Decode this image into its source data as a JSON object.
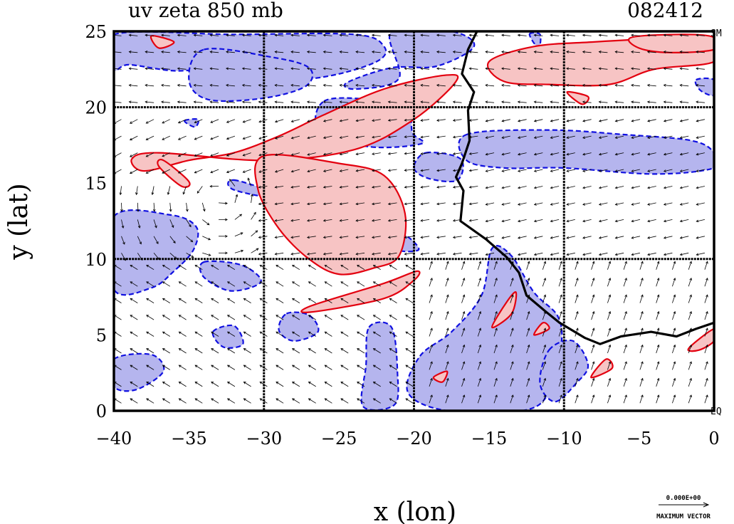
{
  "chart_data": {
    "type": "contour",
    "title": "uv zeta 850 mb",
    "date_label": "082412",
    "xlabel": "x (lon)",
    "ylabel": "y (lat)",
    "xlim": [
      -40,
      0
    ],
    "ylim": [
      0,
      25
    ],
    "x_ticks": [
      -40,
      -35,
      -30,
      -25,
      -20,
      -15,
      -10,
      -5,
      0
    ],
    "y_ticks": [
      0,
      5,
      10,
      15,
      20,
      25
    ],
    "x_tick_labels": [
      "−40",
      "−35",
      "−30",
      "−25",
      "−20",
      "−15",
      "−10",
      "−5",
      "0"
    ],
    "y_tick_labels": [
      "0",
      "5",
      "10",
      "15",
      "20",
      "25"
    ],
    "grid_x": [
      -30,
      -20,
      -10
    ],
    "grid_y": [
      10,
      20
    ],
    "corner_labels": {
      "top_right": "SM",
      "bottom_right": "EQ"
    },
    "vector_legend": {
      "value": "0.000E+00",
      "label": "MAXIMUM VECTOR"
    },
    "colors": {
      "positive_fill": "#f7c4c4",
      "negative_fill": "#b5b5ee",
      "positive_line": "#e3000f",
      "negative_line": "#1010e0",
      "coast": "#000000",
      "vector": "#000000",
      "grid": "#000000"
    },
    "coastline": [
      [
        -15.8,
        25
      ],
      [
        -16.4,
        23.8
      ],
      [
        -16.8,
        22.2
      ],
      [
        -16.0,
        21.0
      ],
      [
        -16.4,
        19.8
      ],
      [
        -16.3,
        17.8
      ],
      [
        -16.8,
        16.3
      ],
      [
        -17.2,
        15.4
      ],
      [
        -16.7,
        14.5
      ],
      [
        -16.9,
        12.5
      ],
      [
        -15.2,
        11.3
      ],
      [
        -13.8,
        10.1
      ],
      [
        -13.0,
        9.1
      ],
      [
        -12.5,
        7.6
      ],
      [
        -11.3,
        6.6
      ],
      [
        -10.3,
        5.8
      ],
      [
        -8.6,
        4.8
      ],
      [
        -7.6,
        4.4
      ],
      [
        -6.2,
        4.9
      ],
      [
        -4.2,
        5.2
      ],
      [
        -2.5,
        4.9
      ],
      [
        -1.2,
        5.4
      ],
      [
        0,
        5.8
      ]
    ],
    "positive_regions": [
      {
        "points": [
          [
            -37,
            17
          ],
          [
            -30,
            16.5
          ],
          [
            -24,
            17.2
          ],
          [
            -20,
            19.2
          ],
          [
            -17.2,
            21.7
          ],
          [
            -18,
            22.1
          ],
          [
            -22,
            21.2
          ],
          [
            -26,
            19.5
          ],
          [
            -29,
            18.1
          ],
          [
            -32,
            17
          ],
          [
            -35,
            16.5
          ],
          [
            -38,
            15.8
          ],
          [
            -38.8,
            16.6
          ]
        ]
      },
      {
        "points": [
          [
            -30,
            16.8
          ],
          [
            -25,
            16.3
          ],
          [
            -22,
            15.5
          ],
          [
            -20.6,
            13
          ],
          [
            -21,
            10.2
          ],
          [
            -22.7,
            9.4
          ],
          [
            -25,
            9
          ],
          [
            -27,
            10
          ],
          [
            -29,
            12
          ],
          [
            -30.4,
            14.6
          ]
        ]
      },
      {
        "points": [
          [
            -26.9,
            6.5
          ],
          [
            -22,
            7.4
          ],
          [
            -20,
            8.6
          ],
          [
            -19.8,
            9.2
          ],
          [
            -22,
            8.4
          ],
          [
            -26.9,
            6.9
          ]
        ]
      },
      {
        "points": [
          [
            -35.5,
            14.8
          ],
          [
            -35,
            15.1
          ],
          [
            -36.7,
            16.5
          ],
          [
            -37,
            16.1
          ]
        ]
      },
      {
        "points": [
          [
            -15,
            23
          ],
          [
            -12,
            24
          ],
          [
            -8,
            24.3
          ],
          [
            -4,
            24.5
          ],
          [
            0,
            24.5
          ],
          [
            0,
            23
          ],
          [
            -4,
            22.5
          ],
          [
            -7,
            21.5
          ],
          [
            -11,
            21.5
          ],
          [
            -14,
            21.7
          ]
        ]
      },
      {
        "points": [
          [
            -5.5,
            24.6
          ],
          [
            -2,
            24.8
          ],
          [
            0,
            24.6
          ],
          [
            0,
            23.8
          ],
          [
            -3,
            23.6
          ],
          [
            -5,
            23.9
          ]
        ]
      },
      {
        "points": [
          [
            -37.5,
            24.7
          ],
          [
            -36,
            24.3
          ],
          [
            -37,
            23.9
          ]
        ]
      },
      {
        "points": [
          [
            -9.8,
            21
          ],
          [
            -8.4,
            20.7
          ],
          [
            -8.8,
            20.2
          ]
        ]
      },
      {
        "points": [
          [
            -14.8,
            5.5
          ],
          [
            -13.8,
            7.2
          ],
          [
            -13.2,
            7.8
          ],
          [
            -13.5,
            6.4
          ]
        ]
      },
      {
        "points": [
          [
            -12,
            5
          ],
          [
            -11.4,
            5.8
          ],
          [
            -11,
            5.4
          ]
        ]
      },
      {
        "points": [
          [
            -18.7,
            2.2
          ],
          [
            -17.8,
            2.6
          ],
          [
            -18.1,
            1.9
          ]
        ]
      },
      {
        "points": [
          [
            -8.2,
            2.2
          ],
          [
            -7.2,
            3.4
          ],
          [
            -6.8,
            2.8
          ]
        ]
      },
      {
        "points": [
          [
            -1.7,
            4.1
          ],
          [
            0,
            5.4
          ],
          [
            0,
            4.6
          ],
          [
            -1,
            4
          ]
        ]
      }
    ],
    "negative_regions": [
      {
        "points": [
          [
            -40,
            24.8
          ],
          [
            -32,
            24.8
          ],
          [
            -24,
            24.8
          ],
          [
            -22,
            24
          ],
          [
            -22.5,
            23
          ],
          [
            -26,
            22
          ],
          [
            -31,
            21.6
          ],
          [
            -33,
            22.5
          ],
          [
            -36,
            22.4
          ],
          [
            -39,
            22.8
          ],
          [
            -40,
            22.5
          ]
        ]
      },
      {
        "points": [
          [
            -34,
            23.8
          ],
          [
            -29.5,
            23.3
          ],
          [
            -27,
            22.6
          ],
          [
            -27.2,
            21.4
          ],
          [
            -30,
            20.6
          ],
          [
            -33.7,
            20.5
          ],
          [
            -35,
            21.8
          ]
        ]
      },
      {
        "points": [
          [
            -21.5,
            25
          ],
          [
            -17.5,
            25
          ],
          [
            -16,
            24
          ],
          [
            -18.5,
            22.7
          ],
          [
            -21.5,
            22.6
          ],
          [
            -24.5,
            21.6
          ],
          [
            -23.8,
            21.2
          ],
          [
            -21,
            21.9
          ]
        ]
      },
      {
        "points": [
          [
            -26,
            20.4
          ],
          [
            -23,
            20.5
          ],
          [
            -20.5,
            19.8
          ],
          [
            -20.1,
            18.3
          ],
          [
            -19.5,
            17.6
          ],
          [
            -23,
            17.4
          ],
          [
            -26.3,
            18.5
          ]
        ]
      },
      {
        "points": [
          [
            -16.5,
            18.2
          ],
          [
            -11,
            18.5
          ],
          [
            -6,
            18.2
          ],
          [
            -1.5,
            17.8
          ],
          [
            0,
            17
          ],
          [
            0,
            16
          ],
          [
            -4,
            15.6
          ],
          [
            -10,
            16
          ],
          [
            -14,
            16
          ],
          [
            -16.5,
            16.5
          ]
        ]
      },
      {
        "points": [
          [
            -19.2,
            17
          ],
          [
            -16.9,
            16.6
          ],
          [
            -17.1,
            15.2
          ],
          [
            -19,
            15.3
          ],
          [
            -20,
            16
          ]
        ]
      },
      {
        "points": [
          [
            -32,
            15.2
          ],
          [
            -29,
            14.4
          ],
          [
            -25.5,
            14
          ],
          [
            -25.8,
            13.4
          ],
          [
            -29.5,
            14
          ],
          [
            -32.1,
            14.6
          ]
        ]
      },
      {
        "points": [
          [
            -40,
            12.8
          ],
          [
            -36.2,
            12.9
          ],
          [
            -34.5,
            12.1
          ],
          [
            -34.7,
            10.6
          ],
          [
            -36,
            9.2
          ],
          [
            -37.5,
            8.1
          ],
          [
            -40,
            8
          ]
        ]
      },
      {
        "points": [
          [
            -34,
            9.8
          ],
          [
            -31.5,
            9.6
          ],
          [
            -30.2,
            8.5
          ],
          [
            -32.2,
            7.9
          ],
          [
            -34,
            8.8
          ]
        ]
      },
      {
        "points": [
          [
            -40,
            3.4
          ],
          [
            -37.5,
            3.7
          ],
          [
            -36.7,
            2.6
          ],
          [
            -38.5,
            1.4
          ],
          [
            -40,
            1.6
          ]
        ]
      },
      {
        "points": [
          [
            -28.5,
            6.4
          ],
          [
            -27,
            6.3
          ],
          [
            -26.4,
            5.2
          ],
          [
            -28,
            4.6
          ],
          [
            -29,
            5.3
          ]
        ]
      },
      {
        "points": [
          [
            -23,
            5.5
          ],
          [
            -21.5,
            5.5
          ],
          [
            -21.1,
            2.5
          ],
          [
            -21.3,
            0.4
          ],
          [
            -23.4,
            0.3
          ],
          [
            -23.2,
            3
          ]
        ]
      },
      {
        "points": [
          [
            -20.9,
            11.6
          ],
          [
            -20.2,
            11.3
          ],
          [
            -19.7,
            10.6
          ],
          [
            -21,
            10.6
          ]
        ]
      },
      {
        "points": [
          [
            -19.6,
            3.6
          ],
          [
            -17.5,
            5.2
          ],
          [
            -15.5,
            7.6
          ],
          [
            -14.8,
            10.7
          ],
          [
            -13.5,
            10.2
          ],
          [
            -12,
            7.8
          ],
          [
            -10.4,
            6.2
          ],
          [
            -10.2,
            4.2
          ],
          [
            -11,
            1.2
          ],
          [
            -12.8,
            0
          ],
          [
            -17.8,
            0
          ],
          [
            -20.4,
            1.2
          ]
        ]
      },
      {
        "points": [
          [
            -11,
            4
          ],
          [
            -9.4,
            4.6
          ],
          [
            -8.4,
            3
          ],
          [
            -9.2,
            1.8
          ],
          [
            -10.6,
            0.6
          ],
          [
            -11.6,
            1.8
          ]
        ]
      },
      {
        "points": [
          [
            -12.3,
            24.8
          ],
          [
            -11.6,
            24.8
          ],
          [
            -11.7,
            23.9
          ]
        ]
      },
      {
        "points": [
          [
            -1.2,
            21.8
          ],
          [
            0,
            21.8
          ],
          [
            0,
            20.8
          ],
          [
            -0.9,
            21.1
          ]
        ]
      },
      {
        "points": [
          [
            -35.3,
            19.1
          ],
          [
            -34.4,
            19.2
          ],
          [
            -34.6,
            18.7
          ]
        ]
      },
      {
        "points": [
          [
            -33.4,
            5.2
          ],
          [
            -32,
            5.6
          ],
          [
            -31.4,
            4.4
          ],
          [
            -32.7,
            4.2
          ]
        ]
      }
    ]
  }
}
